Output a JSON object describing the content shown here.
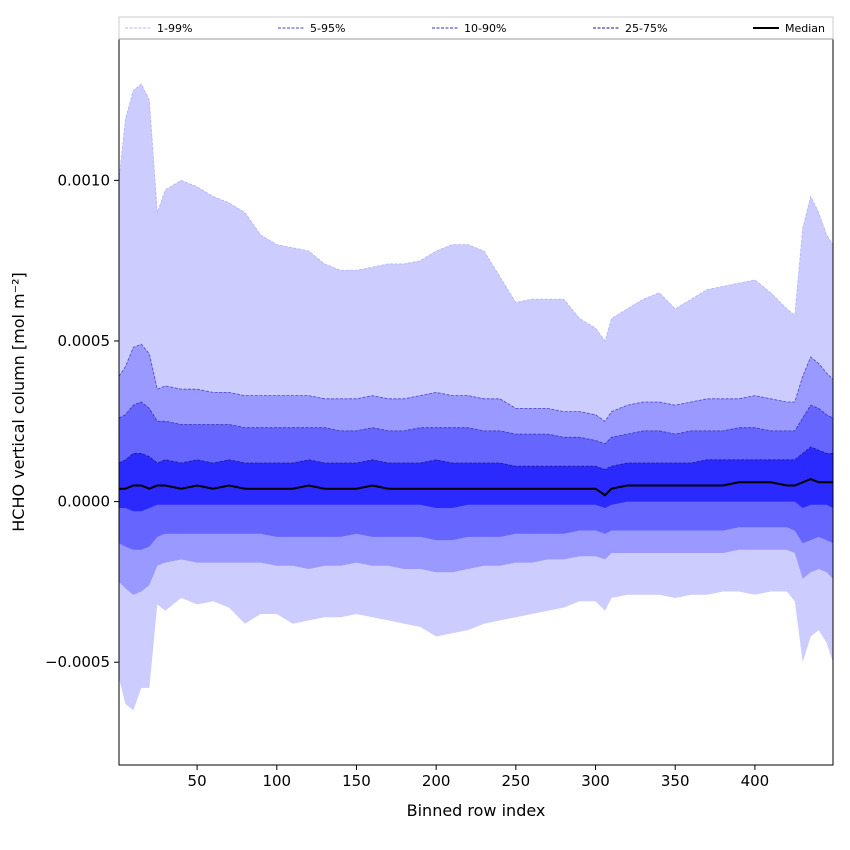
{
  "chart_data": {
    "type": "area",
    "title": "",
    "xlabel": "Binned row index",
    "ylabel": "HCHO vertical column [mol m⁻²]",
    "xlim": [
      1,
      449
    ],
    "ylim": [
      -0.00082,
      0.00144
    ],
    "x_ticks": [
      50,
      100,
      150,
      200,
      250,
      300,
      350,
      400
    ],
    "x_tick_labels": [
      "50",
      "100",
      "150",
      "200",
      "250",
      "300",
      "350",
      "400"
    ],
    "y_ticks": [
      -0.0005,
      0.0,
      0.0005,
      0.001
    ],
    "y_tick_labels": [
      "−0.0005",
      "0.0000",
      "0.0005",
      "0.0010"
    ],
    "grid": false,
    "legend": {
      "placement": "top",
      "entries": [
        "1-99%",
        "5-95%",
        "10-90%",
        "25-75%",
        "Median"
      ]
    },
    "x": [
      1,
      5,
      10,
      15,
      20,
      25,
      30,
      40,
      50,
      60,
      70,
      80,
      90,
      100,
      110,
      120,
      130,
      140,
      150,
      160,
      170,
      180,
      190,
      200,
      210,
      220,
      230,
      240,
      250,
      260,
      270,
      280,
      290,
      300,
      306,
      310,
      320,
      330,
      340,
      350,
      360,
      370,
      380,
      390,
      400,
      410,
      420,
      425,
      430,
      435,
      440,
      445,
      449
    ],
    "bands": [
      {
        "name": "1-99%",
        "fill": "#ccccff",
        "edge": "#b4b4ff",
        "lower": [
          -0.00055,
          -0.00063,
          -0.00065,
          -0.00058,
          -0.00058,
          -0.00032,
          -0.00034,
          -0.0003,
          -0.00032,
          -0.00031,
          -0.00033,
          -0.00038,
          -0.00035,
          -0.00035,
          -0.00038,
          -0.00037,
          -0.00036,
          -0.00036,
          -0.00035,
          -0.00036,
          -0.00037,
          -0.00038,
          -0.00039,
          -0.00042,
          -0.00041,
          -0.0004,
          -0.00038,
          -0.00037,
          -0.00036,
          -0.00035,
          -0.00034,
          -0.00033,
          -0.00031,
          -0.00031,
          -0.00034,
          -0.0003,
          -0.00029,
          -0.00029,
          -0.00029,
          -0.0003,
          -0.00029,
          -0.00029,
          -0.00028,
          -0.00028,
          -0.00029,
          -0.00028,
          -0.00028,
          -0.00031,
          -0.0005,
          -0.00042,
          -0.0004,
          -0.00044,
          -0.0005
        ],
        "upper": [
          0.001,
          0.00119,
          0.00128,
          0.0013,
          0.00125,
          0.0009,
          0.00097,
          0.001,
          0.00098,
          0.00095,
          0.00093,
          0.0009,
          0.00083,
          0.0008,
          0.00079,
          0.00078,
          0.00074,
          0.00072,
          0.00072,
          0.00073,
          0.00074,
          0.00074,
          0.00075,
          0.00078,
          0.0008,
          0.0008,
          0.00078,
          0.0007,
          0.00062,
          0.00063,
          0.00063,
          0.00063,
          0.00057,
          0.00054,
          0.0005,
          0.00057,
          0.0006,
          0.00063,
          0.00065,
          0.0006,
          0.00063,
          0.00066,
          0.00067,
          0.00068,
          0.00069,
          0.00065,
          0.0006,
          0.00058,
          0.00085,
          0.00095,
          0.0009,
          0.00083,
          0.0008
        ]
      },
      {
        "name": "5-95%",
        "fill": "#9999ff",
        "edge": "#4444cc",
        "lower": [
          -0.00025,
          -0.00027,
          -0.00029,
          -0.00028,
          -0.00026,
          -0.0002,
          -0.00019,
          -0.00018,
          -0.00019,
          -0.00019,
          -0.00019,
          -0.00019,
          -0.00019,
          -0.0002,
          -0.0002,
          -0.00021,
          -0.0002,
          -0.0002,
          -0.00019,
          -0.0002,
          -0.0002,
          -0.00021,
          -0.00021,
          -0.00022,
          -0.00022,
          -0.00021,
          -0.0002,
          -0.0002,
          -0.00019,
          -0.00019,
          -0.00018,
          -0.00018,
          -0.00017,
          -0.00017,
          -0.00018,
          -0.00016,
          -0.00016,
          -0.00016,
          -0.00016,
          -0.00016,
          -0.00016,
          -0.00016,
          -0.00016,
          -0.00015,
          -0.00015,
          -0.00015,
          -0.00015,
          -0.00016,
          -0.00024,
          -0.00022,
          -0.00021,
          -0.00022,
          -0.00024
        ],
        "upper": [
          0.00039,
          0.00042,
          0.00048,
          0.00049,
          0.00046,
          0.00035,
          0.00036,
          0.00035,
          0.00035,
          0.00034,
          0.00034,
          0.00033,
          0.00033,
          0.00033,
          0.00033,
          0.00033,
          0.00032,
          0.00032,
          0.00032,
          0.00033,
          0.00032,
          0.00032,
          0.00033,
          0.00034,
          0.00033,
          0.00033,
          0.00032,
          0.00032,
          0.00029,
          0.00029,
          0.00029,
          0.00028,
          0.00028,
          0.00027,
          0.00025,
          0.00028,
          0.0003,
          0.00031,
          0.00031,
          0.0003,
          0.00031,
          0.00032,
          0.00032,
          0.00032,
          0.00033,
          0.00032,
          0.00031,
          0.00031,
          0.00039,
          0.00045,
          0.00043,
          0.0004,
          0.00038
        ]
      },
      {
        "name": "10-90%",
        "fill": "#6666ff",
        "edge": "#3333bb",
        "lower": [
          -0.00013,
          -0.00014,
          -0.00015,
          -0.00015,
          -0.00014,
          -0.00011,
          -0.0001,
          -0.0001,
          -0.0001,
          -0.0001,
          -0.0001,
          -0.0001,
          -0.0001,
          -0.00011,
          -0.00011,
          -0.00011,
          -0.00011,
          -0.00011,
          -0.0001,
          -0.00011,
          -0.00011,
          -0.00011,
          -0.00011,
          -0.00012,
          -0.00012,
          -0.00011,
          -0.00011,
          -0.00011,
          -0.0001,
          -0.0001,
          -0.0001,
          -0.0001,
          -9e-05,
          -9e-05,
          -0.0001,
          -9e-05,
          -9e-05,
          -9e-05,
          -9e-05,
          -9e-05,
          -9e-05,
          -9e-05,
          -9e-05,
          -8e-05,
          -8e-05,
          -8e-05,
          -8e-05,
          -9e-05,
          -0.00013,
          -0.00012,
          -0.00011,
          -0.00012,
          -0.00013
        ],
        "upper": [
          0.00026,
          0.00027,
          0.0003,
          0.00031,
          0.00029,
          0.00025,
          0.00025,
          0.00024,
          0.00024,
          0.00024,
          0.00024,
          0.00023,
          0.00023,
          0.00023,
          0.00023,
          0.00023,
          0.00023,
          0.00022,
          0.00022,
          0.00023,
          0.00022,
          0.00022,
          0.00023,
          0.00023,
          0.00023,
          0.00023,
          0.00022,
          0.00022,
          0.00021,
          0.00021,
          0.00021,
          0.0002,
          0.0002,
          0.00019,
          0.00018,
          0.0002,
          0.00021,
          0.00022,
          0.00022,
          0.00021,
          0.00022,
          0.00022,
          0.00022,
          0.00023,
          0.00023,
          0.00022,
          0.00022,
          0.00022,
          0.00026,
          0.0003,
          0.00029,
          0.00027,
          0.00026
        ]
      },
      {
        "name": "25-75%",
        "fill": "#2a2aff",
        "edge": "#1a1a99",
        "lower": [
          -2e-05,
          -2e-05,
          -3e-05,
          -3e-05,
          -2e-05,
          -1e-05,
          -1e-05,
          -1e-05,
          -1e-05,
          -1e-05,
          -1e-05,
          -1e-05,
          -1e-05,
          -1e-05,
          -1e-05,
          -1e-05,
          -1e-05,
          -1e-05,
          -1e-05,
          -1e-05,
          -1e-05,
          -1e-05,
          -1e-05,
          -2e-05,
          -2e-05,
          -1e-05,
          -1e-05,
          -1e-05,
          -1e-05,
          -1e-05,
          -1e-05,
          -1e-05,
          -1e-05,
          -1e-05,
          -2e-05,
          -1e-05,
          0.0,
          0.0,
          0.0,
          0.0,
          0.0,
          0.0,
          0.0,
          0.0,
          0.0,
          0.0,
          0.0,
          0.0,
          -2e-05,
          -1e-05,
          -1e-05,
          -1e-05,
          -2e-05
        ],
        "upper": [
          0.00012,
          0.00013,
          0.00015,
          0.00015,
          0.00014,
          0.00012,
          0.00013,
          0.00012,
          0.00013,
          0.00012,
          0.00013,
          0.00012,
          0.00012,
          0.00012,
          0.00012,
          0.00013,
          0.00012,
          0.00012,
          0.00012,
          0.00013,
          0.00012,
          0.00012,
          0.00012,
          0.00013,
          0.00012,
          0.00012,
          0.00012,
          0.00012,
          0.00011,
          0.00011,
          0.00011,
          0.00011,
          0.00011,
          0.00011,
          0.0001,
          0.00011,
          0.00012,
          0.00012,
          0.00012,
          0.00012,
          0.00012,
          0.00013,
          0.00013,
          0.00013,
          0.00013,
          0.00013,
          0.00013,
          0.00013,
          0.00015,
          0.00017,
          0.00016,
          0.00015,
          0.00015
        ]
      }
    ],
    "median": {
      "name": "Median",
      "color": "#000000",
      "values": [
        4e-05,
        4e-05,
        5e-05,
        5e-05,
        4e-05,
        5e-05,
        5e-05,
        4e-05,
        5e-05,
        4e-05,
        5e-05,
        4e-05,
        4e-05,
        4e-05,
        4e-05,
        5e-05,
        4e-05,
        4e-05,
        4e-05,
        5e-05,
        4e-05,
        4e-05,
        4e-05,
        4e-05,
        4e-05,
        4e-05,
        4e-05,
        4e-05,
        4e-05,
        4e-05,
        4e-05,
        4e-05,
        4e-05,
        4e-05,
        2e-05,
        4e-05,
        5e-05,
        5e-05,
        5e-05,
        5e-05,
        5e-05,
        5e-05,
        5e-05,
        6e-05,
        6e-05,
        6e-05,
        5e-05,
        5e-05,
        6e-05,
        7e-05,
        6e-05,
        6e-05,
        6e-05
      ]
    }
  }
}
